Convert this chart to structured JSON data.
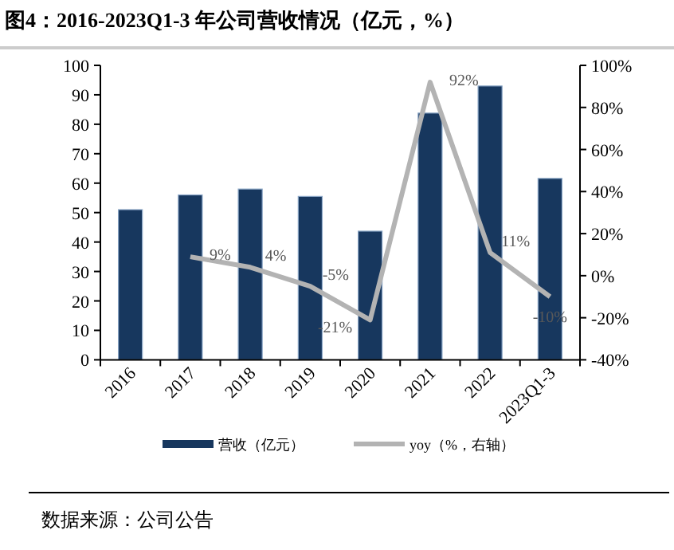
{
  "chart_data": {
    "type": "bar",
    "title": "图4：2016-2023Q1-3 年公司营收情况（亿元，%）",
    "categories": [
      "2016",
      "2017",
      "2018",
      "2019",
      "2020",
      "2021",
      "2022",
      "2023Q1-3"
    ],
    "series": [
      {
        "name": "营收（亿元）",
        "color": "#17375e",
        "values": [
          51,
          56,
          58,
          55.5,
          43.7,
          83.8,
          93,
          61.6
        ]
      },
      {
        "name": "yoy（%，右轴）",
        "type": "line",
        "axis": "y2",
        "color": "#b3b3b3",
        "values": [
          null,
          9,
          4,
          -5,
          -21,
          92,
          11,
          -10
        ],
        "value_labels": [
          null,
          "9%",
          "4%",
          "-5%",
          "-21%",
          "92%",
          "11%",
          "-10%"
        ]
      }
    ],
    "ylim": [
      0,
      100
    ],
    "yticks": [
      0,
      10,
      20,
      30,
      40,
      50,
      60,
      70,
      80,
      90,
      100
    ],
    "y2lim": [
      -40,
      100
    ],
    "y2ticks": [
      {
        "value": -40,
        "label": "-40%"
      },
      {
        "value": -20,
        "label": "-20%"
      },
      {
        "value": 0,
        "label": "0%"
      },
      {
        "value": 20,
        "label": "20%"
      },
      {
        "value": 40,
        "label": "40%"
      },
      {
        "value": 60,
        "label": "60%"
      },
      {
        "value": 80,
        "label": "80%"
      },
      {
        "value": 100,
        "label": "100%"
      }
    ],
    "legend": "bottom",
    "grid": false,
    "marker": "none",
    "annotations": [
      "数据来源：公司公告"
    ]
  }
}
